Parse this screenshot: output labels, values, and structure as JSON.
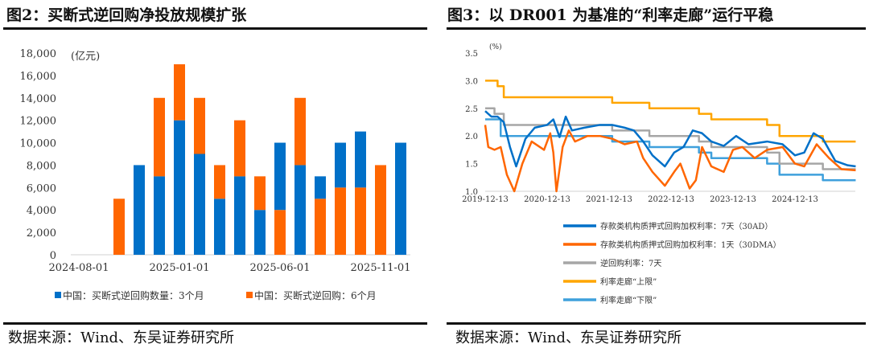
{
  "left": {
    "title": "图2：买断式逆回购净投放规模扩张",
    "source": "数据来源：Wind、东吴证券研究所"
  },
  "right": {
    "title": "图3：以 DR001 为基准的“利率走廊”运行平稳",
    "source": "数据来源：Wind、东吴证券研究所"
  },
  "colors": {
    "blue": "#0070C8",
    "orange": "#FF6600",
    "gray": "#A6A6A6",
    "yellow": "#FFA500",
    "lightblue": "#3FA0DC"
  },
  "chart_data": [
    {
      "type": "bar",
      "stacked": true,
      "unit_label": "(亿元)",
      "ylim": [
        0,
        18000
      ],
      "yticks": [
        "0",
        "2,000",
        "4,000",
        "6,000",
        "8,000",
        "10,000",
        "12,000",
        "14,000",
        "16,000",
        "18,000"
      ],
      "xtick_labels": [
        {
          "label": "2024-08-01",
          "index": 0
        },
        {
          "label": "2025-01-01",
          "index": 5
        },
        {
          "label": "2025-06-01",
          "index": 10
        },
        {
          "label": "2025-11-01",
          "index": 15
        }
      ],
      "categories": [
        "2024-08",
        "2024-09",
        "2024-10",
        "2024-11",
        "2024-12",
        "2025-01",
        "2025-02",
        "2025-03",
        "2025-04",
        "2025-05",
        "2025-06",
        "2025-07",
        "2025-08",
        "2025-09",
        "2025-10",
        "2025-11",
        "2025-12"
      ],
      "series": [
        {
          "name": "中国：买断式逆回购数量：3个月",
          "color": "#0070C8",
          "values": [
            0,
            0,
            0,
            8000,
            7000,
            12000,
            9000,
            5000,
            7000,
            4000,
            6000,
            8000,
            2000,
            4000,
            5000,
            0,
            10000
          ]
        },
        {
          "name": "中国：买断式逆回购：6个月",
          "color": "#FF6600",
          "values": [
            0,
            0,
            5000,
            0,
            7000,
            5000,
            5000,
            3000,
            5000,
            3000,
            4000,
            6000,
            5000,
            6000,
            6000,
            8000,
            0
          ]
        }
      ],
      "bottom_series_per_bar": [
        "3m",
        "3m",
        "6m",
        "3m",
        "3m",
        "3m",
        "3m",
        "3m",
        "3m",
        "3m",
        "6m",
        "3m",
        "6m",
        "6m",
        "6m",
        "6m",
        "3m"
      ],
      "legend": "bottom"
    },
    {
      "type": "line",
      "unit_label": "(%)",
      "ylim": [
        1.0,
        3.5
      ],
      "yticks": [
        "1.0",
        "1.5",
        "2.0",
        "2.5",
        "3.0",
        "3.5"
      ],
      "xtick_labels": [
        "2019-12-13",
        "2020-12-13",
        "2021-12-13",
        "2022-12-13",
        "2023-12-13",
        "2024-12-13"
      ],
      "x_unit": "year",
      "xlim": [
        2019.95,
        2025.93
      ],
      "legend": "bottom",
      "series": [
        {
          "name": "存款类机构质押式回购加权利率：7天（30AD）",
          "color": "#0070C8",
          "points": [
            [
              2019.95,
              2.45
            ],
            [
              2020.05,
              2.35
            ],
            [
              2020.15,
              2.35
            ],
            [
              2020.25,
              2.25
            ],
            [
              2020.35,
              1.8
            ],
            [
              2020.45,
              1.45
            ],
            [
              2020.6,
              1.95
            ],
            [
              2020.75,
              2.15
            ],
            [
              2020.95,
              2.2
            ],
            [
              2021.05,
              2.3
            ],
            [
              2021.15,
              1.98
            ],
            [
              2021.25,
              2.35
            ],
            [
              2021.35,
              2.1
            ],
            [
              2021.55,
              2.15
            ],
            [
              2021.8,
              2.2
            ],
            [
              2022.0,
              2.2
            ],
            [
              2022.2,
              2.15
            ],
            [
              2022.35,
              2.1
            ],
            [
              2022.5,
              1.9
            ],
            [
              2022.65,
              1.65
            ],
            [
              2022.85,
              1.45
            ],
            [
              2023.0,
              1.7
            ],
            [
              2023.15,
              1.8
            ],
            [
              2023.3,
              2.1
            ],
            [
              2023.45,
              2.05
            ],
            [
              2023.6,
              1.9
            ],
            [
              2023.8,
              1.82
            ],
            [
              2024.0,
              2.0
            ],
            [
              2024.2,
              1.85
            ],
            [
              2024.5,
              1.9
            ],
            [
              2024.75,
              1.85
            ],
            [
              2024.95,
              1.65
            ],
            [
              2025.1,
              1.7
            ],
            [
              2025.25,
              2.05
            ],
            [
              2025.4,
              1.95
            ],
            [
              2025.6,
              1.55
            ],
            [
              2025.8,
              1.47
            ],
            [
              2025.93,
              1.45
            ]
          ]
        },
        {
          "name": "存款类机构质押式回购加权利率：1天（30DMA）",
          "color": "#FF6600",
          "points": [
            [
              2019.95,
              2.2
            ],
            [
              2020.0,
              1.8
            ],
            [
              2020.1,
              1.75
            ],
            [
              2020.2,
              1.8
            ],
            [
              2020.3,
              1.3
            ],
            [
              2020.42,
              1.0
            ],
            [
              2020.55,
              1.5
            ],
            [
              2020.7,
              1.9
            ],
            [
              2020.9,
              1.75
            ],
            [
              2021.0,
              2.05
            ],
            [
              2021.05,
              1.7
            ],
            [
              2021.1,
              1.0
            ],
            [
              2021.2,
              1.8
            ],
            [
              2021.3,
              2.1
            ],
            [
              2021.4,
              1.9
            ],
            [
              2021.6,
              2.0
            ],
            [
              2021.8,
              2.0
            ],
            [
              2022.0,
              1.95
            ],
            [
              2022.2,
              1.85
            ],
            [
              2022.4,
              1.9
            ],
            [
              2022.5,
              1.6
            ],
            [
              2022.65,
              1.35
            ],
            [
              2022.85,
              1.1
            ],
            [
              2023.0,
              1.35
            ],
            [
              2023.1,
              1.5
            ],
            [
              2023.25,
              1.05
            ],
            [
              2023.35,
              1.2
            ],
            [
              2023.45,
              1.8
            ],
            [
              2023.6,
              1.45
            ],
            [
              2023.8,
              1.35
            ],
            [
              2023.95,
              1.75
            ],
            [
              2024.1,
              1.8
            ],
            [
              2024.3,
              1.6
            ],
            [
              2024.5,
              1.75
            ],
            [
              2024.75,
              1.8
            ],
            [
              2024.95,
              1.5
            ],
            [
              2025.1,
              1.45
            ],
            [
              2025.3,
              1.85
            ],
            [
              2025.5,
              1.6
            ],
            [
              2025.7,
              1.4
            ],
            [
              2025.93,
              1.38
            ]
          ]
        },
        {
          "name": "逆回购利率：7天",
          "color": "#A6A6A6",
          "step": true,
          "points": [
            [
              2019.95,
              2.5
            ],
            [
              2020.1,
              2.4
            ],
            [
              2020.25,
              2.2
            ],
            [
              2022.0,
              2.1
            ],
            [
              2022.6,
              2.0
            ],
            [
              2023.4,
              1.9
            ],
            [
              2023.6,
              1.8
            ],
            [
              2024.5,
              1.7
            ],
            [
              2024.7,
              1.5
            ],
            [
              2025.4,
              1.4
            ],
            [
              2025.93,
              1.4
            ]
          ]
        },
        {
          "name": "利率走廊“上限”",
          "color": "#FFA500",
          "step": true,
          "points": [
            [
              2019.95,
              3.0
            ],
            [
              2020.15,
              2.9
            ],
            [
              2020.25,
              2.7
            ],
            [
              2022.0,
              2.6
            ],
            [
              2022.6,
              2.5
            ],
            [
              2023.4,
              2.4
            ],
            [
              2023.6,
              2.3
            ],
            [
              2024.5,
              2.2
            ],
            [
              2024.7,
              2.0
            ],
            [
              2025.4,
              1.9
            ],
            [
              2025.93,
              1.9
            ]
          ]
        },
        {
          "name": "利率走廊“下限”",
          "color": "#3FA0DC",
          "step": true,
          "points": [
            [
              2019.95,
              2.3
            ],
            [
              2020.2,
              2.0
            ],
            [
              2022.0,
              1.9
            ],
            [
              2022.6,
              1.8
            ],
            [
              2023.4,
              1.7
            ],
            [
              2023.6,
              1.6
            ],
            [
              2024.5,
              1.5
            ],
            [
              2024.7,
              1.3
            ],
            [
              2025.4,
              1.2
            ],
            [
              2025.93,
              1.2
            ]
          ]
        }
      ]
    }
  ]
}
